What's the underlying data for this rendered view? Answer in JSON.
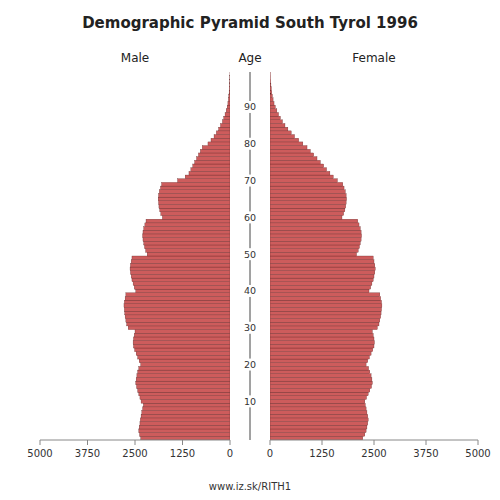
{
  "chart_data": {
    "type": "pyramid",
    "orientation": "horizontal",
    "title": "Demographic Pyramid South Tyrol 1996",
    "subtitle": "www.iz.sk/RITH1",
    "ylabel": "Age",
    "categories": [
      null,
      null,
      null,
      null,
      null,
      null,
      null,
      null,
      null,
      null,
      "10",
      null,
      null,
      null,
      null,
      null,
      null,
      null,
      null,
      null,
      "20",
      null,
      null,
      null,
      null,
      null,
      null,
      null,
      null,
      null,
      "30",
      null,
      null,
      null,
      null,
      null,
      null,
      null,
      null,
      null,
      "40",
      null,
      null,
      null,
      null,
      null,
      null,
      null,
      null,
      null,
      "50",
      null,
      null,
      null,
      null,
      null,
      null,
      null,
      null,
      null,
      "60",
      null,
      null,
      null,
      null,
      null,
      null,
      null,
      null,
      null,
      "70",
      null,
      null,
      null,
      null,
      null,
      null,
      null,
      null,
      null,
      "80",
      null,
      null,
      null,
      null,
      null,
      null,
      null,
      null,
      null,
      "90",
      null,
      null,
      null,
      null,
      null,
      null,
      null,
      null,
      null
    ],
    "xlim": [
      0,
      5000
    ],
    "xticks": [
      0,
      1250,
      2500,
      3750,
      5000
    ],
    "series": [
      {
        "name": "Male",
        "color": "#cd5c5c",
        "values": [
          2350,
          2380,
          2400,
          2390,
          2370,
          2360,
          2340,
          2320,
          2300,
          2280,
          2340,
          2370,
          2400,
          2430,
          2460,
          2480,
          2470,
          2450,
          2430,
          2400,
          2350,
          2390,
          2430,
          2470,
          2510,
          2540,
          2550,
          2540,
          2520,
          2500,
          2680,
          2720,
          2740,
          2760,
          2770,
          2780,
          2790,
          2780,
          2760,
          2740,
          2480,
          2520,
          2550,
          2580,
          2600,
          2620,
          2630,
          2620,
          2600,
          2580,
          2180,
          2220,
          2250,
          2270,
          2290,
          2300,
          2290,
          2270,
          2240,
          2210,
          1780,
          1820,
          1850,
          1870,
          1880,
          1890,
          1880,
          1860,
          1830,
          1800,
          1380,
          1180,
          1080,
          1030,
          980,
          930,
          880,
          830,
          780,
          730,
          580,
          500,
          420,
          360,
          300,
          250,
          200,
          165,
          130,
          100,
          75,
          55,
          42,
          32,
          23,
          16,
          11,
          7,
          4,
          2
        ]
      },
      {
        "name": "Female",
        "color": "#cd5c5c",
        "values": [
          2230,
          2280,
          2310,
          2330,
          2350,
          2360,
          2350,
          2330,
          2310,
          2290,
          2280,
          2320,
          2360,
          2400,
          2440,
          2460,
          2450,
          2430,
          2400,
          2370,
          2310,
          2350,
          2390,
          2430,
          2470,
          2500,
          2510,
          2500,
          2480,
          2460,
          2580,
          2620,
          2640,
          2660,
          2670,
          2680,
          2690,
          2680,
          2660,
          2640,
          2380,
          2420,
          2450,
          2480,
          2500,
          2520,
          2530,
          2520,
          2500,
          2480,
          2080,
          2120,
          2150,
          2170,
          2190,
          2200,
          2190,
          2170,
          2140,
          2110,
          1730,
          1770,
          1800,
          1820,
          1830,
          1840,
          1830,
          1810,
          1780,
          1750,
          1620,
          1520,
          1440,
          1360,
          1290,
          1210,
          1130,
          1050,
          970,
          890,
          790,
          690,
          590,
          510,
          430,
          360,
          300,
          250,
          205,
          165,
          128,
          97,
          74,
          57,
          42,
          31,
          22,
          15,
          10,
          7
        ]
      }
    ]
  }
}
